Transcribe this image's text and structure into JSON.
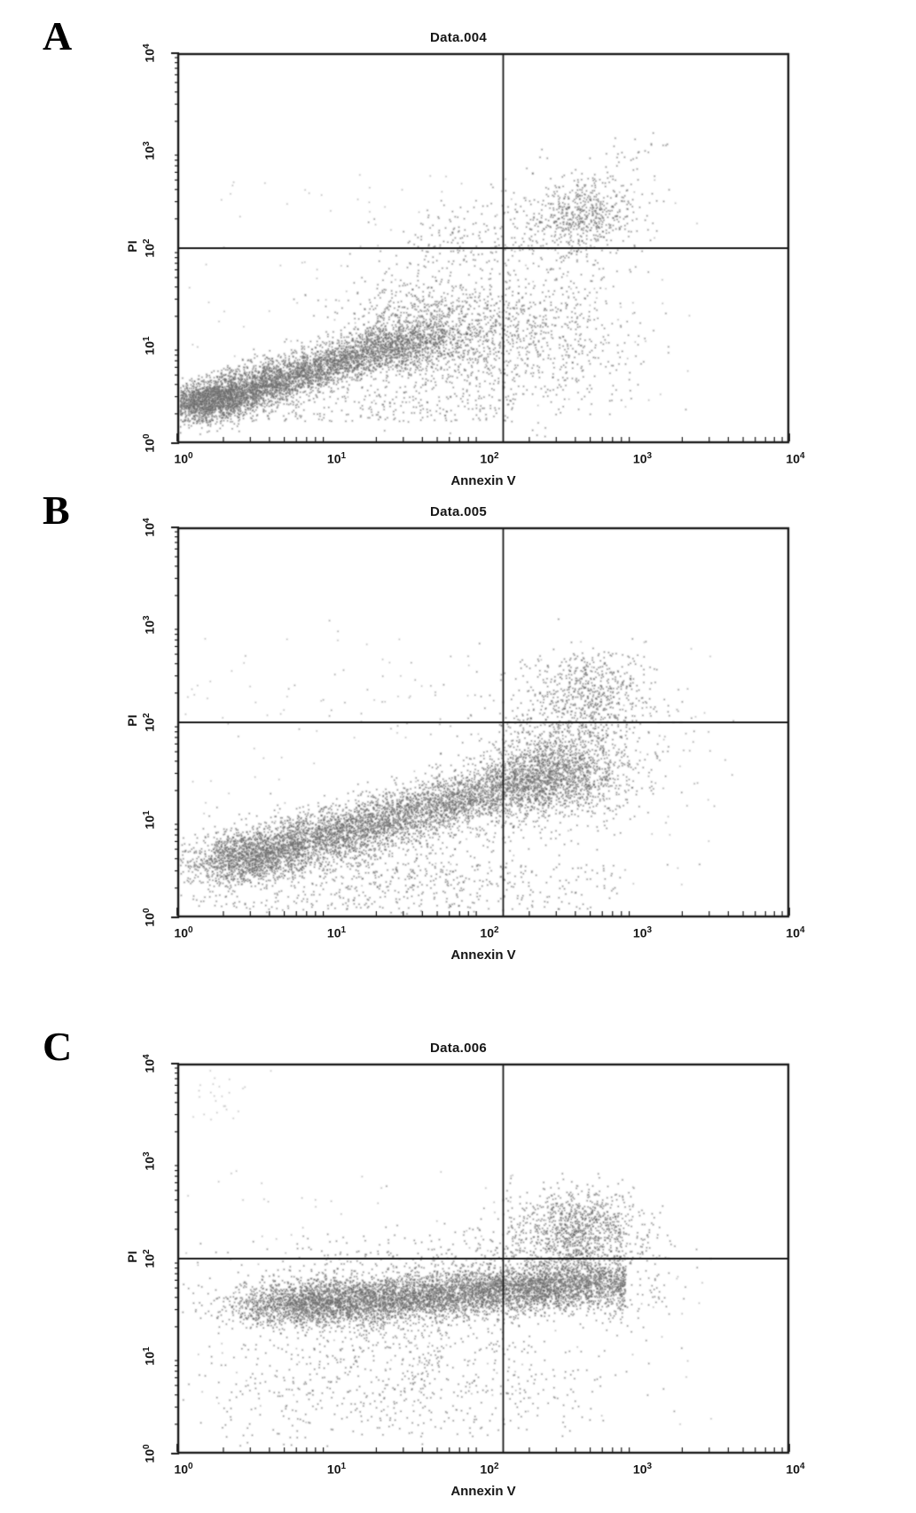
{
  "figure": {
    "description": "Flow cytometry Annexin V / PI dot plots, three panels",
    "tick_base": "10"
  },
  "chart_data": [
    {
      "type": "scatter",
      "panel_label": "A",
      "title": "Data.004",
      "xlabel": "Annexin V",
      "ylabel": "PI",
      "xscale": "log",
      "yscale": "log",
      "xlim": [
        1,
        10000
      ],
      "ylim": [
        1,
        10000
      ],
      "grid": false,
      "x_tick_exponents": [
        "0",
        "1",
        "2",
        "3",
        "4"
      ],
      "y_tick_exponents": [
        "0",
        "1",
        "2",
        "3",
        "4"
      ],
      "gates": {
        "annexin_v": 135,
        "pi": 100
      },
      "dot_color": "#5a5a5a",
      "clusters": [
        {
          "name": "main-viable-comet",
          "kind": "comet",
          "n": 5200,
          "t_pow": 1.6,
          "x0": 0.1,
          "dx": 1.52,
          "sx": 0.13,
          "y0": 0.38,
          "dy": 0.72,
          "sy0": 0.1,
          "sy1": 0.11
        },
        {
          "name": "mid-fan",
          "kind": "gauss",
          "n": 1300,
          "mx": 1.7,
          "sx": 0.3,
          "my": 1.12,
          "sy": 0.3
        },
        {
          "name": "lower-right-scatter",
          "kind": "gauss",
          "n": 520,
          "mx": 2.45,
          "sx": 0.3,
          "my": 1.05,
          "sy": 0.42
        },
        {
          "name": "upper-right-core",
          "kind": "gauss",
          "n": 380,
          "mx": 2.66,
          "sx": 0.15,
          "my": 2.34,
          "sy": 0.16
        },
        {
          "name": "upper-right-halo",
          "kind": "gauss",
          "n": 280,
          "mx": 2.6,
          "sx": 0.28,
          "my": 2.22,
          "sy": 0.3
        },
        {
          "name": "upper-mid-sparse",
          "kind": "gauss",
          "n": 140,
          "mx": 1.85,
          "sx": 0.22,
          "my": 2.08,
          "sy": 0.18
        },
        {
          "name": "diagonal-high-tail",
          "kind": "comet",
          "n": 45,
          "t_pow": 1.0,
          "x0": 2.55,
          "dx": 0.65,
          "sx": 0.09,
          "y0": 2.45,
          "dy": 0.68,
          "sy0": 0.1,
          "sy1": 0.1
        },
        {
          "name": "bottom-fringe",
          "kind": "uniform",
          "n": 260,
          "x0": 0.1,
          "x1": 2.2,
          "y0": 0.22,
          "y1": 0.5
        },
        {
          "name": "noise",
          "kind": "uniform",
          "n": 130,
          "x0": 0.05,
          "x1": 3.4,
          "y0": 0.3,
          "y1": 2.8,
          "alpha": 0.6
        }
      ]
    },
    {
      "type": "scatter",
      "panel_label": "B",
      "title": "Data.005",
      "xlabel": "Annexin V",
      "ylabel": "PI",
      "xscale": "log",
      "yscale": "log",
      "xlim": [
        1,
        10000
      ],
      "ylim": [
        1,
        10000
      ],
      "grid": false,
      "x_tick_exponents": [
        "0",
        "1",
        "2",
        "3",
        "4"
      ],
      "y_tick_exponents": [
        "0",
        "1",
        "2",
        "3",
        "4"
      ],
      "gates": {
        "annexin_v": 135,
        "pi": 100
      },
      "dot_color": "#5a5a5a",
      "clusters": [
        {
          "name": "main-band-comet",
          "kind": "comet",
          "n": 5800,
          "t_pow": 1.25,
          "x0": 0.28,
          "dx": 2.3,
          "sx": 0.15,
          "y0": 0.55,
          "dy": 0.95,
          "sy0": 0.13,
          "sy1": 0.15
        },
        {
          "name": "lower-right-cloud",
          "kind": "gauss",
          "n": 1100,
          "mx": 2.5,
          "sx": 0.26,
          "my": 1.5,
          "sy": 0.28
        },
        {
          "name": "upper-right-core",
          "kind": "gauss",
          "n": 430,
          "mx": 2.72,
          "sx": 0.17,
          "my": 2.33,
          "sy": 0.2
        },
        {
          "name": "upper-right-halo",
          "kind": "gauss",
          "n": 320,
          "mx": 2.62,
          "sx": 0.27,
          "my": 2.12,
          "sy": 0.32
        },
        {
          "name": "below-band-scatter",
          "kind": "gauss",
          "n": 520,
          "mx": 1.35,
          "sx": 0.55,
          "my": 0.48,
          "sy": 0.28
        },
        {
          "name": "bottom-sparse",
          "kind": "uniform",
          "n": 280,
          "x0": 0.1,
          "x1": 2.9,
          "y0": 0.08,
          "y1": 0.55
        },
        {
          "name": "upper-left-sparse",
          "kind": "gauss",
          "n": 36,
          "mx": 1.35,
          "sx": 0.45,
          "my": 2.3,
          "sy": 0.35,
          "alpha": 0.8
        },
        {
          "name": "right-outliers",
          "kind": "gauss",
          "n": 30,
          "mx": 3.15,
          "sx": 0.22,
          "my": 1.55,
          "sy": 0.5,
          "alpha": 0.8
        },
        {
          "name": "noise",
          "kind": "uniform",
          "n": 120,
          "x0": 0.05,
          "x1": 3.5,
          "y0": 0.3,
          "y1": 2.9,
          "alpha": 0.6
        }
      ]
    },
    {
      "type": "scatter",
      "panel_label": "C",
      "title": "Data.006",
      "xlabel": "Annexin V",
      "ylabel": "PI",
      "xscale": "log",
      "yscale": "log",
      "xlim": [
        1,
        10000
      ],
      "ylim": [
        1,
        10000
      ],
      "grid": false,
      "x_tick_exponents": [
        "0",
        "1",
        "2",
        "3",
        "4"
      ],
      "y_tick_exponents": [
        "0",
        "1",
        "2",
        "3",
        "4"
      ],
      "gates": {
        "annexin_v": 135,
        "pi": 100
      },
      "dot_color": "#5a5a5a",
      "clusters": [
        {
          "name": "main-horizontal-band",
          "kind": "comet",
          "n": 6200,
          "t_pow": 0.95,
          "x0": 0.55,
          "dx": 2.3,
          "sx": 0.18,
          "y0": 1.5,
          "dy": 0.26,
          "sy0": 0.11,
          "sy1": 0.13,
          "xmax": 2.93
        },
        {
          "name": "band-left-fade",
          "kind": "gauss",
          "n": 420,
          "mx": 0.9,
          "sx": 0.3,
          "my": 1.58,
          "sy": 0.16
        },
        {
          "name": "upper-right-core",
          "kind": "gauss",
          "n": 800,
          "mx": 2.64,
          "sx": 0.19,
          "my": 2.3,
          "sy": 0.2
        },
        {
          "name": "upper-right-halo",
          "kind": "gauss",
          "n": 420,
          "mx": 2.5,
          "sx": 0.29,
          "my": 2.1,
          "sy": 0.3
        },
        {
          "name": "below-band-scatter",
          "kind": "gauss",
          "n": 650,
          "mx": 1.5,
          "sx": 0.6,
          "my": 1.0,
          "sy": 0.38
        },
        {
          "name": "deep-lower-sparse",
          "kind": "uniform",
          "n": 170,
          "x0": 0.25,
          "x1": 2.8,
          "y0": 0.15,
          "y1": 0.8
        },
        {
          "name": "above-band-left-fringe",
          "kind": "gauss",
          "n": 150,
          "mx": 1.6,
          "sx": 0.5,
          "my": 2.02,
          "sy": 0.13
        },
        {
          "name": "right-spill",
          "kind": "gauss",
          "n": 90,
          "mx": 3.0,
          "sx": 0.13,
          "my": 1.8,
          "sy": 0.28
        },
        {
          "name": "top-left-smudge",
          "kind": "gauss",
          "n": 26,
          "mx": 0.28,
          "sx": 0.12,
          "my": 3.7,
          "sy": 0.14,
          "alpha": 0.5
        },
        {
          "name": "noise",
          "kind": "uniform",
          "n": 130,
          "x0": 0.05,
          "x1": 3.5,
          "y0": 0.3,
          "y1": 2.9,
          "alpha": 0.6
        }
      ]
    }
  ]
}
